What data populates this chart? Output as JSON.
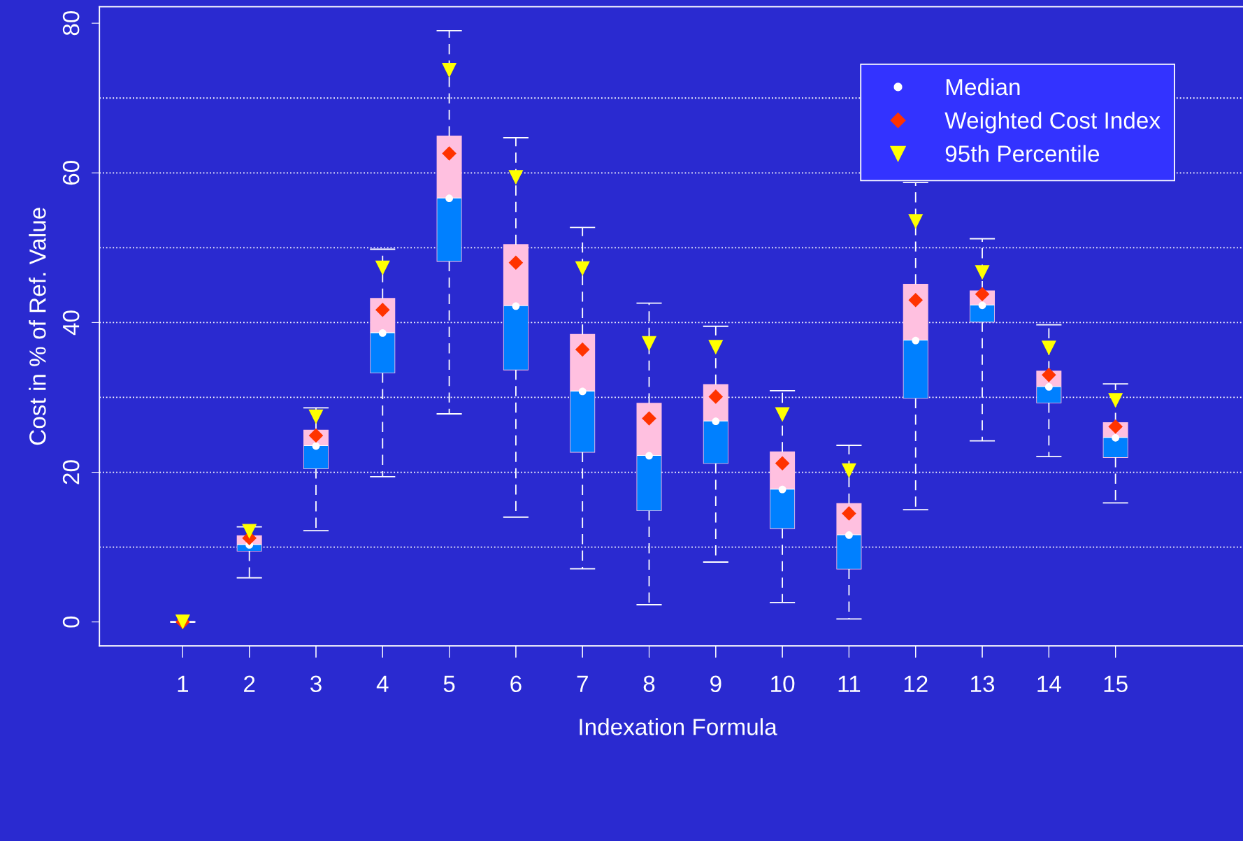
{
  "chart_data": {
    "type": "box",
    "xlabel": "Indexation Formula",
    "ylabel": "Cost in % of Ref. Value",
    "categories": [
      "1",
      "2",
      "3",
      "4",
      "5",
      "6",
      "7",
      "8",
      "9",
      "10",
      "11",
      "12",
      "13",
      "14",
      "15"
    ],
    "series": [
      {
        "type": "box",
        "color": "#ffc0e0",
        "boxes": [
          {
            "low": 0,
            "q1": 0,
            "median": 0,
            "q3": 0,
            "high": 0
          },
          {
            "low": 5.9,
            "q1": 9.5,
            "median": 10.3,
            "q3": 11.5,
            "high": 12.7
          },
          {
            "low": 12.2,
            "q1": 20.5,
            "median": 23.5,
            "q3": 25.6,
            "high": 28.6
          },
          {
            "low": 19.4,
            "q1": 33.3,
            "median": 38.6,
            "q3": 43.2,
            "high": 49.8
          },
          {
            "low": 27.8,
            "q1": 48.2,
            "median": 56.6,
            "q3": 64.9,
            "high": 79.0
          },
          {
            "low": 14.0,
            "q1": 33.7,
            "median": 42.2,
            "q3": 50.4,
            "high": 64.7
          },
          {
            "low": 7.1,
            "q1": 22.7,
            "median": 30.8,
            "q3": 38.4,
            "high": 52.7
          },
          {
            "low": 2.3,
            "q1": 14.9,
            "median": 22.2,
            "q3": 29.2,
            "high": 42.6
          },
          {
            "low": 8.0,
            "q1": 21.2,
            "median": 26.8,
            "q3": 31.7,
            "high": 39.5
          },
          {
            "low": 2.6,
            "q1": 12.5,
            "median": 17.7,
            "q3": 22.7,
            "high": 30.9
          },
          {
            "low": 0.4,
            "q1": 7.1,
            "median": 11.6,
            "q3": 15.8,
            "high": 23.6
          },
          {
            "low": 15.0,
            "q1": 29.9,
            "median": 37.6,
            "q3": 45.1,
            "high": 58.7
          },
          {
            "low": 24.2,
            "q1": 40.1,
            "median": 42.3,
            "q3": 44.2,
            "high": 51.2
          },
          {
            "low": 22.1,
            "q1": 29.3,
            "median": 31.4,
            "q3": 33.5,
            "high": 39.7
          },
          {
            "low": 15.9,
            "q1": 22.0,
            "median": 24.6,
            "q3": 26.6,
            "high": 31.8
          }
        ]
      },
      {
        "name": "Median",
        "type": "scatter",
        "marker": "circle",
        "color": "#ffffff",
        "x": [
          "1",
          "2",
          "3",
          "4",
          "5",
          "6",
          "7",
          "8",
          "9",
          "10",
          "11",
          "12",
          "13",
          "14",
          "15"
        ],
        "values": [
          null,
          10.3,
          23.5,
          38.6,
          56.6,
          42.2,
          30.8,
          22.2,
          26.8,
          17.7,
          11.6,
          37.6,
          42.3,
          31.4,
          24.6
        ]
      },
      {
        "name": "Weighted Cost Index",
        "type": "scatter",
        "marker": "diamond",
        "color": "#ff3300",
        "x": [
          "1",
          "2",
          "3",
          "4",
          "5",
          "6",
          "7",
          "8",
          "9",
          "10",
          "11",
          "12",
          "13",
          "14",
          "15"
        ],
        "values": [
          0,
          11.2,
          24.9,
          41.7,
          62.6,
          48.0,
          36.4,
          27.2,
          30.1,
          21.2,
          14.5,
          43.0,
          43.8,
          33.0,
          26.1
        ]
      },
      {
        "name": "95th Percentile",
        "type": "scatter",
        "marker": "triangle",
        "color": "#ffff00",
        "x": [
          "1",
          "2",
          "3",
          "4",
          "5",
          "6",
          "7",
          "8",
          "9",
          "10",
          "11",
          "12",
          "13",
          "14",
          "15"
        ],
        "values": [
          0,
          12.1,
          27.4,
          47.3,
          73.7,
          59.4,
          47.2,
          37.2,
          36.7,
          27.7,
          20.2,
          53.5,
          46.7,
          36.6,
          29.6
        ]
      }
    ],
    "ylim": [
      -3.2,
      82.2
    ],
    "yticks": [
      0,
      20,
      40,
      60,
      80
    ],
    "ref_lines": [
      {
        "axis": "y",
        "value": 10,
        "color": "#ffffff",
        "line_style": "dotted"
      },
      {
        "axis": "y",
        "value": 20,
        "color": "#ffffff",
        "line_style": "dotted"
      },
      {
        "axis": "y",
        "value": 30,
        "color": "#ffffff",
        "line_style": "dotted"
      },
      {
        "axis": "y",
        "value": 40,
        "color": "#ffffff",
        "line_style": "dotted"
      },
      {
        "axis": "y",
        "value": 50,
        "color": "#ffffff",
        "line_style": "dotted"
      },
      {
        "axis": "y",
        "value": 60,
        "color": "#ffffff",
        "line_style": "dotted"
      },
      {
        "axis": "y",
        "value": 70,
        "color": "#ffffff",
        "line_style": "dotted"
      }
    ],
    "legend": "top right",
    "grid": false
  }
}
